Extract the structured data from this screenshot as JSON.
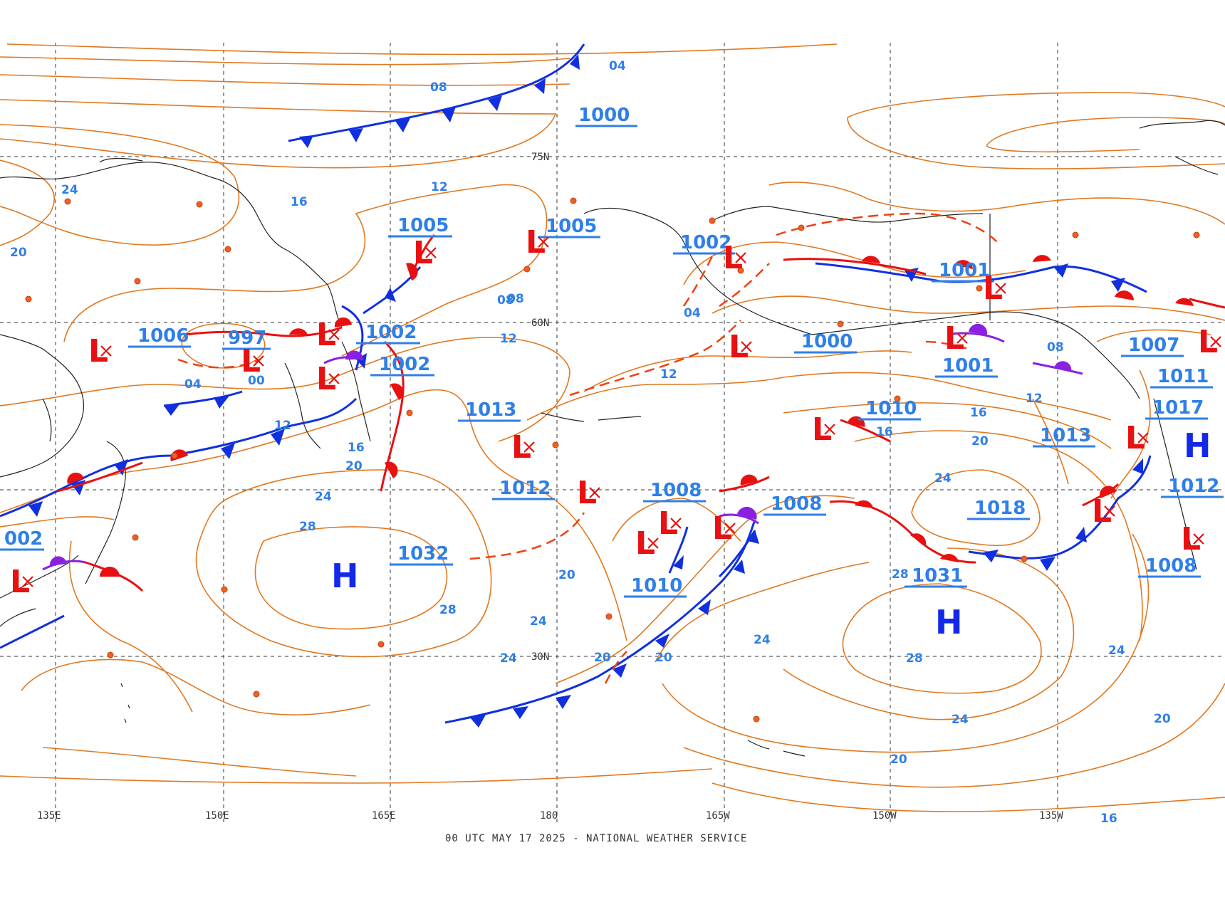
{
  "map": {
    "footer": "00 UTC MAY 17 2025 - NATIONAL WEATHER SERVICE",
    "lat_labels": [
      "75N",
      "60N",
      "30N"
    ],
    "lon_labels": [
      "135E",
      "150E",
      "165E",
      "180",
      "165W",
      "150W",
      "135W"
    ],
    "isobar_labels": [
      "04",
      "08",
      "12",
      "16",
      "20",
      "24",
      "28",
      "12",
      "16",
      "20",
      "24",
      "08",
      "12",
      "20",
      "24",
      "28",
      "20",
      "24",
      "20",
      "24",
      "28",
      "16",
      "20",
      "24",
      "28",
      "20",
      "24",
      "16",
      "04",
      "08",
      "12",
      "16",
      "20",
      "24",
      "04",
      "00",
      "08",
      "12"
    ],
    "pressure_centers": [
      {
        "type": "H",
        "value": "1032"
      },
      {
        "type": "H",
        "value": "1031"
      },
      {
        "type": "H",
        "value": "1017"
      },
      {
        "type": "L",
        "value": "1006"
      },
      {
        "type": "L",
        "value": "997"
      },
      {
        "type": "L",
        "value": "1002"
      },
      {
        "type": "L",
        "value": "1002"
      },
      {
        "type": "L",
        "value": "1005"
      },
      {
        "type": "L",
        "value": "1005"
      },
      {
        "type": "L",
        "value": "1002"
      },
      {
        "type": "L",
        "value": "1001"
      },
      {
        "type": "L",
        "value": "1000"
      },
      {
        "type": "L",
        "value": "1001"
      },
      {
        "type": "L",
        "value": "1007"
      },
      {
        "type": "L",
        "value": "1011"
      },
      {
        "type": "L",
        "value": "1013"
      },
      {
        "type": "L",
        "value": "1012"
      },
      {
        "type": "L",
        "value": "1008"
      },
      {
        "type": "L",
        "value": "1008"
      },
      {
        "type": "L",
        "value": "1010"
      },
      {
        "type": "L",
        "value": "1010"
      },
      {
        "type": "L",
        "value": "1012"
      },
      {
        "type": "L",
        "value": "1013"
      },
      {
        "type": "L",
        "value": "1008"
      },
      {
        "type": "L",
        "value": "002"
      }
    ],
    "extra_pressure_labels": [
      "1000",
      "1018"
    ],
    "colors": {
      "isobar": "#e07820",
      "isobar_label": "#2f7fe8",
      "high": "#1428e8",
      "low": "#e81010",
      "cold_front": "#1030e0",
      "warm_front": "#e81010",
      "occluded_front": "#8a20e0"
    }
  }
}
